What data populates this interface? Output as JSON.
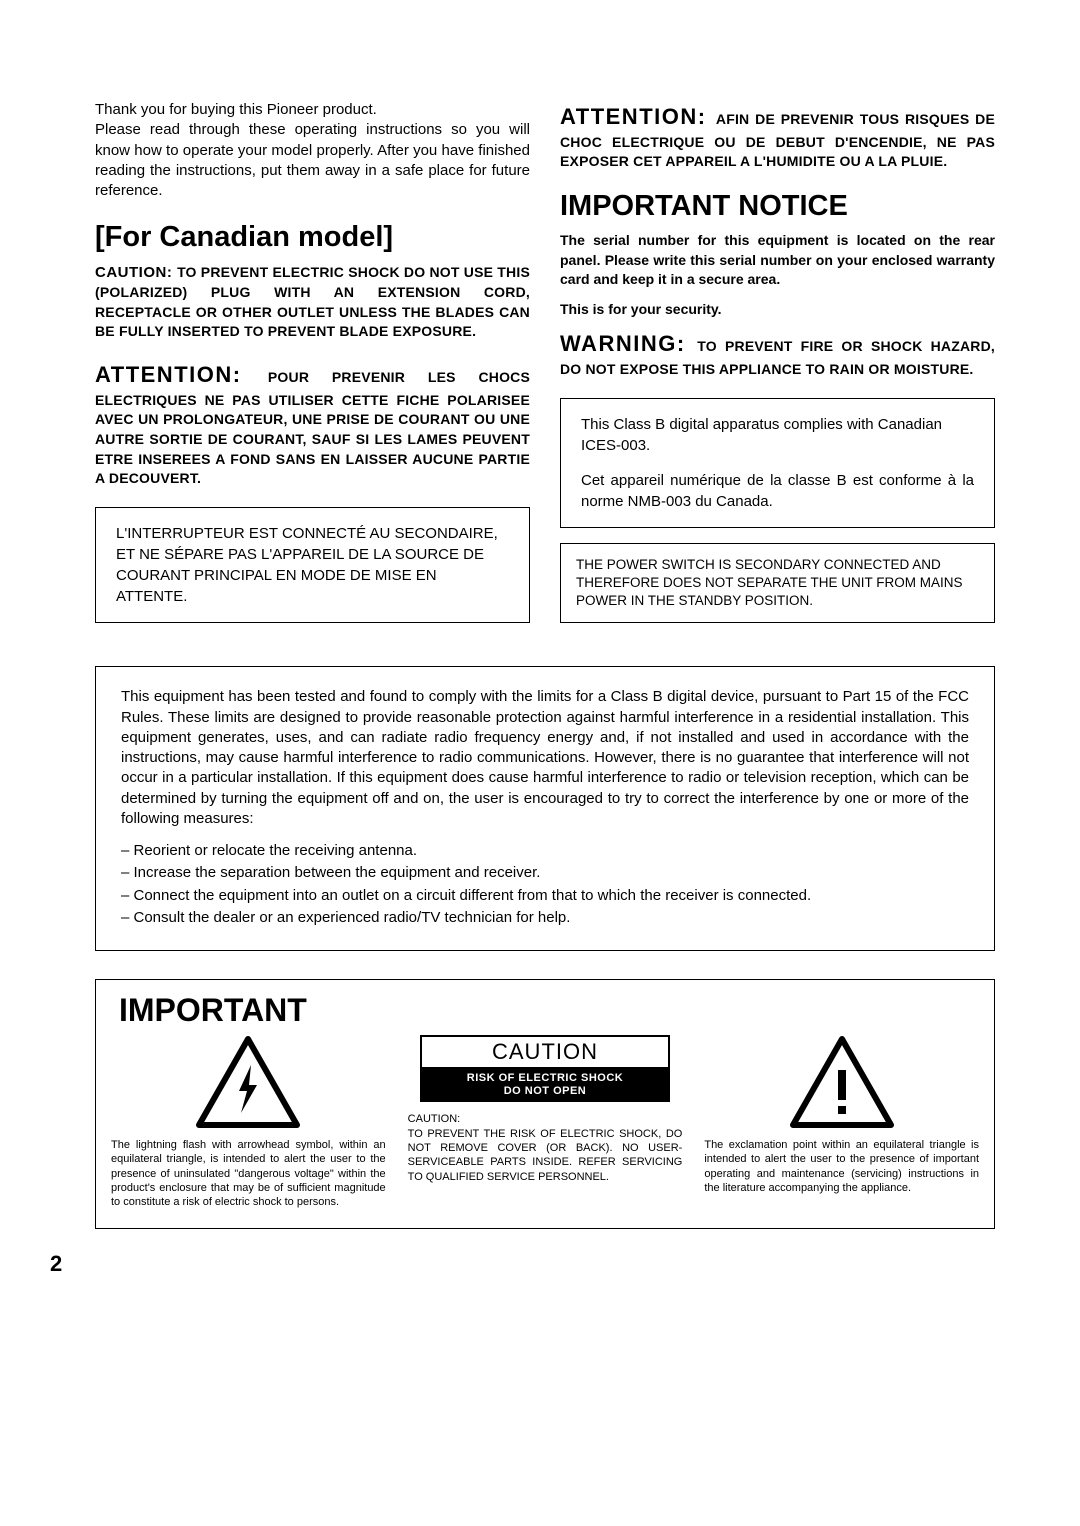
{
  "intro": "Thank you for buying this Pioneer product.\nPlease read through these operating instructions so you will know how to operate your model properly. After you have finished reading the instructions, put them away in a safe place for future reference.",
  "left": {
    "heading": "[For Canadian model]",
    "caution_word": "CAUTION: ",
    "caution_text": "TO PREVENT ELECTRIC SHOCK DO NOT USE THIS (POLARIZED) PLUG WITH AN EXTENSION CORD, RECEPTACLE OR OTHER OUTLET UNLESS THE BLADES CAN BE FULLY INSERTED TO PREVENT BLADE EXPOSURE.",
    "attention_word": "ATTENTION: ",
    "attention_text": "POUR PREVENIR LES CHOCS ELECTRIQUES NE PAS UTILISER CETTE FICHE POLARISEE AVEC UN PROLONGATEUR, UNE PRISE DE COURANT OU UNE AUTRE SORTIE DE COURANT, SAUF SI LES LAMES PEUVENT ETRE INSEREES A FOND SANS EN LAISSER AUCUNE PARTIE A DECOUVERT.",
    "box_fr": "L'INTERRUPTEUR EST CONNECTÉ AU SECONDAIRE, ET NE SÉPARE PAS L'APPAREIL DE LA SOURCE DE COURANT PRINCIPAL EN MODE DE MISE EN ATTENTE."
  },
  "right": {
    "attention_word": "ATTENTION: ",
    "attention_text": "AFIN DE PREVENIR TOUS RISQUES DE CHOC ELECTRIQUE OU DE DEBUT D'ENCENDIE, NE PAS EXPOSER CET APPAREIL A L'HUMIDITE OU A LA PLUIE.",
    "heading": "IMPORTANT NOTICE",
    "notice1": "The serial number for this equipment is located on the rear panel. Please write this serial number on your enclosed warranty card and keep it in a secure area.",
    "notice2": "This is for your security.",
    "warning_word": "WARNING: ",
    "warning_text": "TO PREVENT FIRE OR SHOCK HAZARD, DO NOT EXPOSE THIS APPLIANCE TO RAIN OR MOISTURE.",
    "box_en_fr_1": "This Class B digital apparatus complies with Canadian ICES-003.",
    "box_en_fr_2": "Cet appareil numérique de la classe B est conforme à la norme NMB-003 du Canada.",
    "box_power": "THE POWER SWITCH IS SECONDARY CONNECTED AND THEREFORE DOES NOT SEPARATE THE UNIT FROM MAINS POWER IN THE STANDBY POSITION."
  },
  "fcc": {
    "para": "This equipment has been tested and found to comply with the limits for a Class B digital device, pursuant to Part 15 of the FCC Rules. These limits are designed to provide reasonable protection against harmful interference in a residential installation. This equipment generates, uses, and can radiate radio frequency energy and, if not installed and used in accordance with the instructions, may cause harmful interference to radio communications. However, there is no guarantee that interference will not occur in a particular installation. If this equipment does cause harmful interference to radio or television reception, which can be determined by turning the equipment off and on, the user is encouraged to try to correct the interference by one or more of the following measures:",
    "items": [
      "– Reorient or relocate the receiving antenna.",
      "– Increase the separation between the equipment and receiver.",
      "– Connect the equipment into an outlet on a circuit different from that to which the receiver is connected.",
      "– Consult the dealer or an experienced radio/TV technician for help."
    ]
  },
  "important": {
    "title": "IMPORTANT",
    "left_text": "The lightning flash with arrowhead symbol, within an equilateral triangle, is intended to alert the user to the presence of uninsulated \"dangerous voltage\" within the product's enclosure that may be of sufficient magnitude to constitute a risk of electric shock to persons.",
    "center_caution": "CAUTION",
    "center_risk_1": "RISK OF ELECTRIC SHOCK",
    "center_risk_2": "DO NOT OPEN",
    "center_head": "CAUTION:",
    "center_text": "TO PREVENT THE RISK OF ELECTRIC SHOCK, DO NOT REMOVE COVER (OR BACK). NO USER-SERVICEABLE PARTS INSIDE. REFER SERVICING TO QUALIFIED SERVICE PERSONNEL.",
    "right_text": "The exclamation point within an equilateral triangle is intended to alert the user to the presence of important operating and maintenance (servicing) instructions in the literature accompanying the appliance."
  },
  "page_number": "2",
  "colors": {
    "text": "#000000",
    "background": "#ffffff"
  }
}
